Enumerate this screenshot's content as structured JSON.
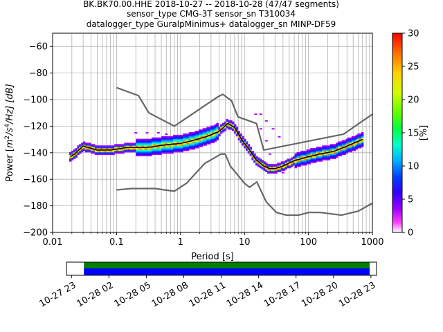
{
  "chart_data": {
    "type": "heatmap",
    "title_lines": [
      "BK.BK70.00.HHE   2018-10-27 -- 2018-10-28  (47/47 segments)",
      "sensor_type CMG-3T sensor_sn T310034",
      "datalogger_type GuralpMinimus+ datalogger_sn MINP-DF59"
    ],
    "xlabel": "Period [s]",
    "ylabel": "Power [m²/s⁴/Hz] [dB]",
    "ylabel_parts": {
      "prefix": "Power [",
      "unit_m": "m",
      "exp_m": "2",
      "unit_s": "/s",
      "exp_s": "4",
      "suffix": "/Hz] [dB]"
    },
    "x_scale": "log",
    "xlim": [
      0.01,
      1000
    ],
    "ylim": [
      -200,
      -50
    ],
    "x_ticks": [
      0.01,
      0.1,
      1,
      10,
      100,
      1000
    ],
    "x_tick_labels": [
      "0.01",
      "0.1",
      "1",
      "10",
      "100",
      "1000"
    ],
    "y_ticks": [
      -200,
      -180,
      -160,
      -140,
      -120,
      -100,
      -80,
      -60
    ],
    "y_tick_labels": [
      "−200",
      "−180",
      "−160",
      "−140",
      "−120",
      "−100",
      "−80",
      "−60"
    ],
    "grid": true,
    "colorbar": {
      "label": "[%]",
      "range": [
        0,
        30
      ],
      "ticks": [
        0,
        5,
        10,
        15,
        20,
        25,
        30
      ],
      "tick_labels": [
        "0",
        "5",
        "10",
        "15",
        "20",
        "25",
        "30"
      ]
    },
    "mode_curve": {
      "x": [
        0.019,
        0.022,
        0.03,
        0.05,
        0.08,
        0.15,
        0.3,
        0.6,
        1.0,
        1.5,
        2.5,
        4.0,
        5.5,
        7.0,
        9.0,
        12,
        15,
        20,
        25,
        30,
        40,
        60,
        100,
        150,
        250,
        400,
        700
      ],
      "y": [
        -143,
        -141,
        -135,
        -138,
        -138,
        -136,
        -136,
        -134,
        -133,
        -131,
        -128,
        -124,
        -118,
        -121,
        -130,
        -138,
        -145,
        -150,
        -152,
        -152,
        -150,
        -146,
        -143,
        -141,
        -139,
        -135,
        -130
      ]
    },
    "nlnm": {
      "x": [
        0.1,
        0.17,
        0.4,
        0.8,
        1.24,
        2.4,
        4.3,
        5.0,
        6.0,
        10,
        12,
        15.6,
        21.9,
        31.6,
        45,
        70,
        101,
        154,
        328,
        600,
        1000
      ],
      "y": [
        -168,
        -167,
        -167,
        -169,
        -163,
        -148,
        -141,
        -141,
        -150,
        -163,
        -166,
        -162,
        -177,
        -185,
        -187,
        -187,
        -185,
        -185,
        -187,
        -184,
        -178
      ]
    },
    "nhnm": {
      "x": [
        0.1,
        0.22,
        0.32,
        0.8,
        3.8,
        4.6,
        6.3,
        7.9,
        15.4,
        20,
        354.8,
        1000
      ],
      "y": [
        -91,
        -97,
        -110,
        -120,
        -98,
        -96,
        -101,
        -113,
        -118,
        -138,
        -126,
        -111
      ]
    },
    "timeline": {
      "tick_labels": [
        "10-27 23",
        "10-28 02",
        "10-28 05",
        "10-28 08",
        "10-28 11",
        "10-28 14",
        "10-28 17",
        "10-28 20",
        "10-28 23"
      ],
      "range_hours": [
        -0.4,
        24.45
      ],
      "tick_hours": [
        0,
        3,
        6,
        9,
        12,
        15,
        18,
        21,
        24
      ],
      "data_coverage_hours": [
        1.0,
        23.9
      ],
      "bar_colors": {
        "top": "#008000",
        "bottom": "#0000ff"
      }
    }
  }
}
